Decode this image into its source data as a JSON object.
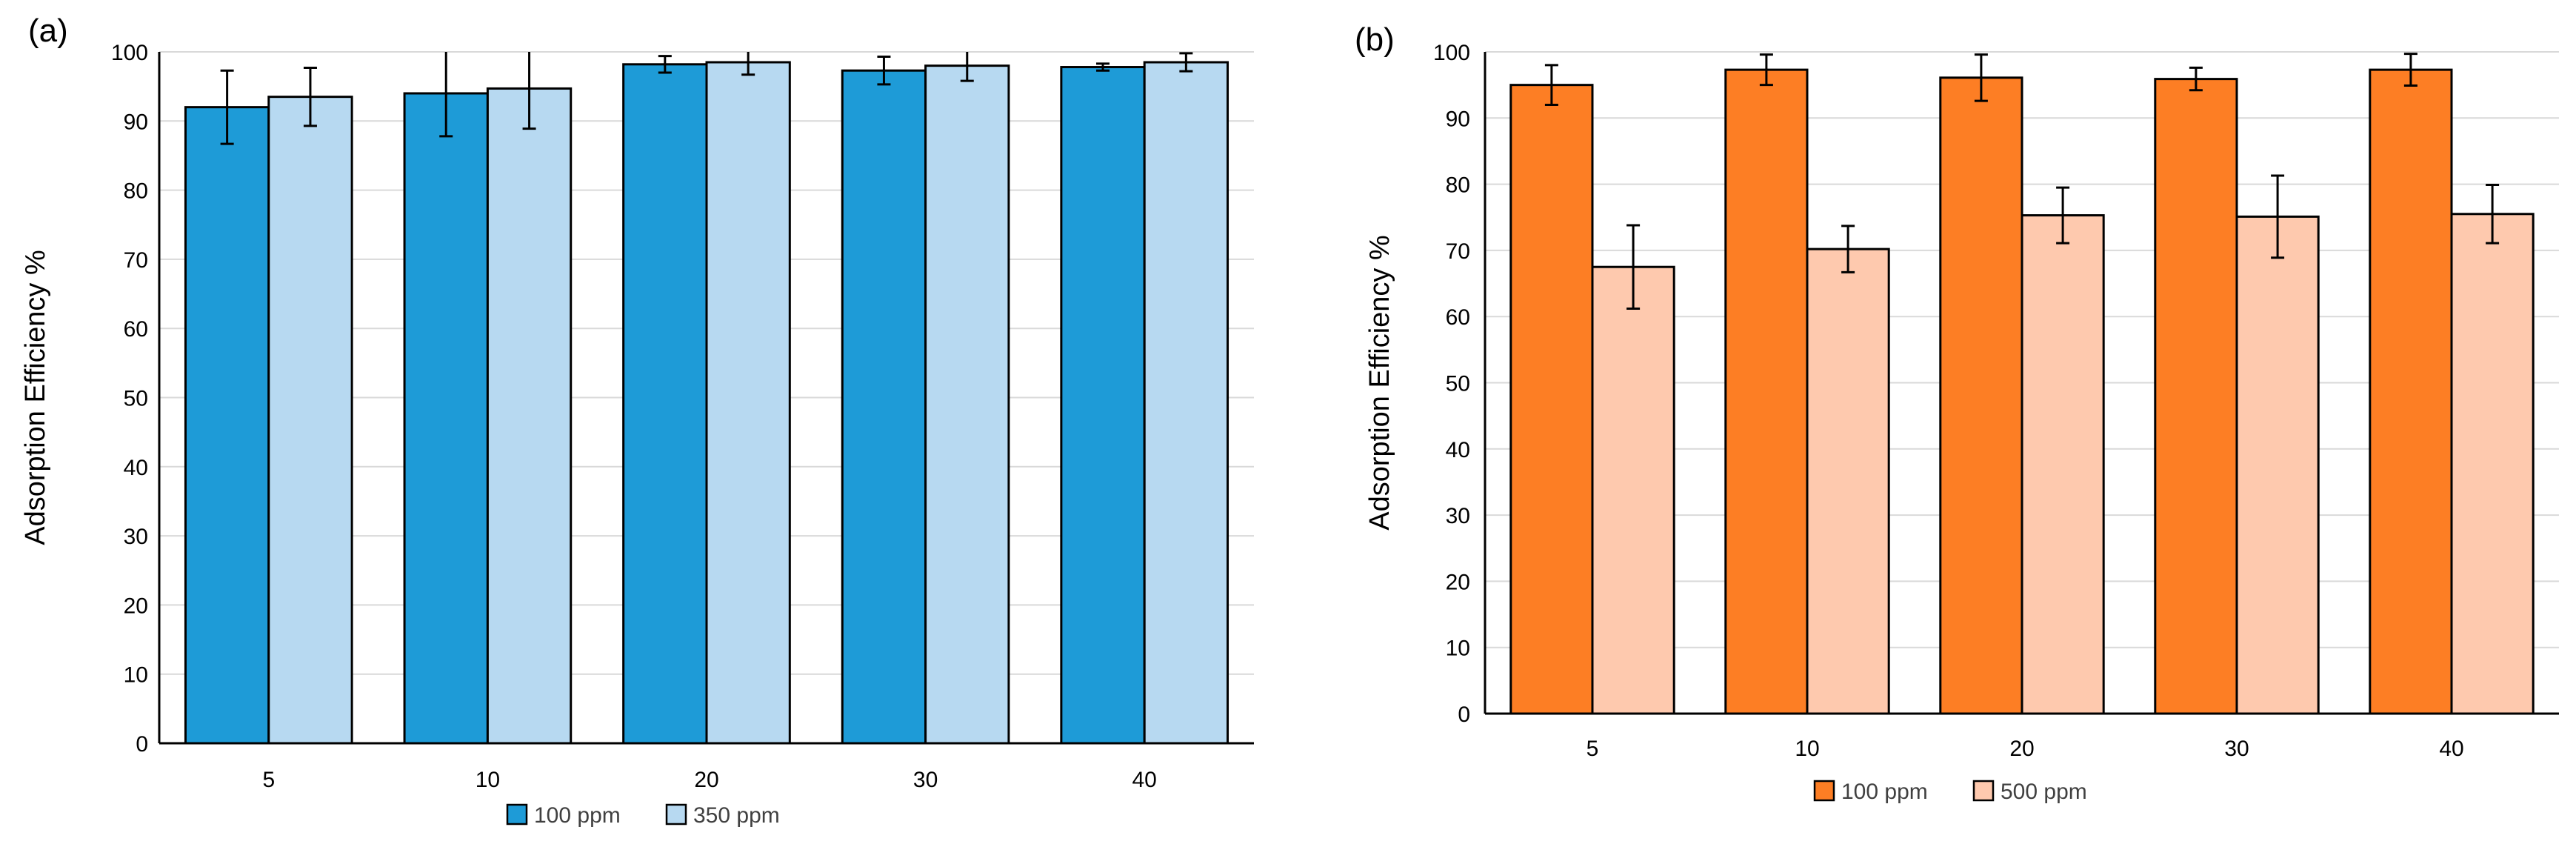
{
  "chart_data": [
    {
      "type": "bar",
      "panel_label": "(a)",
      "ylabel": "Adsorption Efficiency %",
      "xlabel": "",
      "ylim": [
        0,
        100
      ],
      "ytick_step": 10,
      "grid": true,
      "legend_position": "bottom-center",
      "categories": [
        "5",
        "10",
        "20",
        "30",
        "40"
      ],
      "series": [
        {
          "name": "100 ppm",
          "color": "#1e9bd7",
          "values": [
            92,
            94,
            98.2,
            97.3,
            97.8
          ],
          "errors": [
            5.3,
            6.2,
            1.2,
            2.0,
            0.5
          ]
        },
        {
          "name": "350 ppm",
          "color": "#b7d9f1",
          "values": [
            93.5,
            94.7,
            98.5,
            98.0,
            98.5
          ],
          "errors": [
            4.2,
            5.8,
            1.8,
            2.2,
            1.3
          ]
        }
      ]
    },
    {
      "type": "bar",
      "panel_label": "(b)",
      "ylabel": "Adsorption Efficiency %",
      "xlabel": "",
      "ylim": [
        0,
        100
      ],
      "ytick_step": 10,
      "grid": true,
      "legend_position": "bottom-center",
      "categories": [
        "5",
        "10",
        "20",
        "30",
        "40"
      ],
      "series": [
        {
          "name": "100 ppm",
          "color": "#fd7e24",
          "values": [
            95,
            97.3,
            96.1,
            95.9,
            97.3
          ],
          "errors": [
            3.0,
            2.3,
            3.5,
            1.7,
            2.4
          ]
        },
        {
          "name": "500 ppm",
          "color": "#fec9ae",
          "values": [
            67.5,
            70.2,
            75.3,
            75.1,
            75.5
          ],
          "errors": [
            6.3,
            3.5,
            4.2,
            6.2,
            4.4
          ]
        }
      ]
    }
  ]
}
